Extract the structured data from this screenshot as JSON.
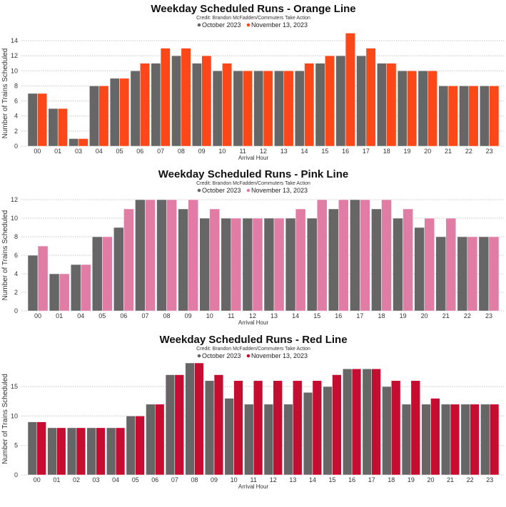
{
  "chart_data": [
    {
      "type": "bar",
      "title": "Weekday Scheduled Runs - Orange Line",
      "subtitle": "Credit: Brandon McFadden/Commuters Take Action",
      "xlabel": "Arrival Hour",
      "ylabel": "Number of Trains Scheduled",
      "ylim": [
        0,
        15
      ],
      "yticks": [
        0,
        2,
        4,
        6,
        8,
        10,
        12,
        14
      ],
      "grid": true,
      "legend_position": "top-center",
      "colors": {
        "October 2023": "#666666",
        "November 13, 2023": "#fc4719"
      },
      "categories": [
        "00",
        "01",
        "03",
        "04",
        "05",
        "06",
        "07",
        "08",
        "09",
        "10",
        "11",
        "12",
        "13",
        "14",
        "15",
        "16",
        "17",
        "18",
        "19",
        "20",
        "21",
        "22",
        "23"
      ],
      "series": [
        {
          "name": "October 2023",
          "values": [
            7,
            5,
            1,
            8,
            9,
            10,
            11,
            12,
            11,
            10,
            10,
            10,
            10,
            10,
            11,
            12,
            12,
            11,
            10,
            10,
            8,
            8,
            8
          ]
        },
        {
          "name": "November 13, 2023",
          "values": [
            7,
            5,
            1,
            8,
            9,
            11,
            13,
            13,
            12,
            11,
            10,
            10,
            10,
            11,
            12,
            15,
            13,
            11,
            10,
            10,
            8,
            8,
            8
          ]
        }
      ]
    },
    {
      "type": "bar",
      "title": "Weekday Scheduled Runs - Pink Line",
      "subtitle": "Credit: Brandon McFadden/Commuters Take Action",
      "xlabel": "Arrival Hour",
      "ylabel": "Number of Trains Scheduled",
      "ylim": [
        0,
        12
      ],
      "yticks": [
        0,
        2,
        4,
        6,
        8,
        10,
        12
      ],
      "grid": true,
      "legend_position": "top-center",
      "colors": {
        "October 2023": "#666666",
        "November 13, 2023": "#e17ca5"
      },
      "categories": [
        "00",
        "01",
        "04",
        "05",
        "06",
        "07",
        "08",
        "09",
        "10",
        "11",
        "12",
        "13",
        "14",
        "15",
        "16",
        "17",
        "18",
        "19",
        "20",
        "21",
        "22",
        "23"
      ],
      "series": [
        {
          "name": "October 2023",
          "values": [
            6,
            4,
            5,
            8,
            9,
            12,
            12,
            11,
            10,
            10,
            10,
            10,
            10,
            10,
            11,
            12,
            11,
            10,
            9,
            8,
            8,
            8
          ]
        },
        {
          "name": "November 13, 2023",
          "values": [
            7,
            4,
            5,
            8,
            11,
            12,
            12,
            12,
            11,
            10,
            10,
            10,
            11,
            12,
            12,
            12,
            12,
            11,
            10,
            10,
            8,
            8
          ]
        }
      ]
    },
    {
      "type": "bar",
      "title": "Weekday Scheduled Runs - Red Line",
      "subtitle": "Credit: Brandon McFadden/Commuters Take Action",
      "xlabel": "Arrival Hour",
      "ylabel": "Number of Trains Scheduled",
      "ylim": [
        0,
        19
      ],
      "yticks": [
        0,
        5,
        10,
        15
      ],
      "grid": true,
      "legend_position": "top-center",
      "colors": {
        "October 2023": "#666666",
        "November 13, 2023": "#c60c30"
      },
      "categories": [
        "00",
        "01",
        "02",
        "03",
        "04",
        "05",
        "06",
        "07",
        "08",
        "09",
        "10",
        "11",
        "12",
        "13",
        "14",
        "15",
        "16",
        "17",
        "18",
        "19",
        "20",
        "21",
        "22",
        "23"
      ],
      "series": [
        {
          "name": "October 2023",
          "values": [
            9,
            8,
            8,
            8,
            8,
            10,
            12,
            17,
            19,
            16,
            13,
            12,
            12,
            12,
            14,
            15,
            18,
            18,
            15,
            12,
            12,
            12,
            12,
            12
          ]
        },
        {
          "name": "November 13, 2023",
          "values": [
            9,
            8,
            8,
            8,
            8,
            10,
            12,
            17,
            19,
            17,
            16,
            16,
            16,
            16,
            16,
            17,
            18,
            18,
            16,
            16,
            13,
            12,
            12,
            12
          ]
        }
      ]
    }
  ]
}
